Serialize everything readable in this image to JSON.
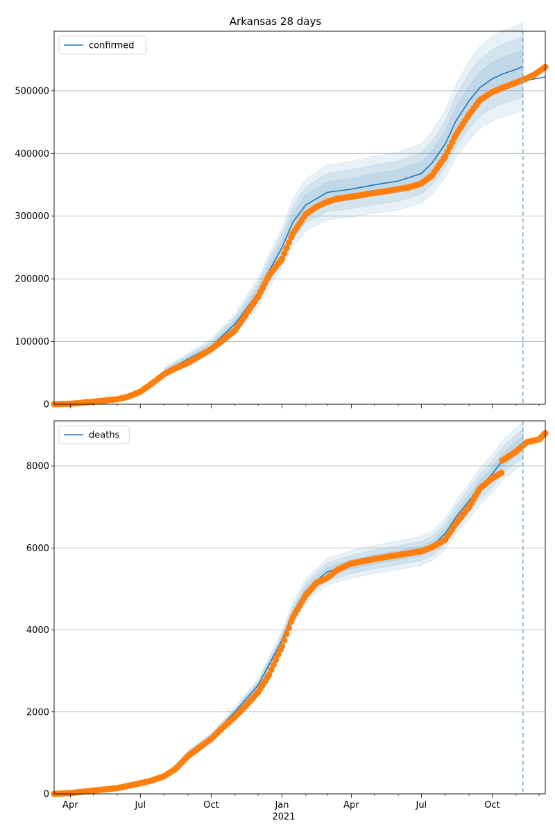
{
  "title": "Arkansas 28 days",
  "colors": {
    "model": "#1f77b4",
    "observed": "#ff7f0e",
    "band": "#1f77b4",
    "grid": "#b0b0b0",
    "forecast_line": "#7fb1d3"
  },
  "x_axis": {
    "start": "2020-03-11",
    "end": "2021-12-09",
    "forecast_date": "2021-11-10",
    "ticks": [
      {
        "date": "2020-04-01",
        "label": "Apr"
      },
      {
        "date": "2020-07-01",
        "label": "Jul"
      },
      {
        "date": "2020-10-01",
        "label": "Oct"
      },
      {
        "date": "2021-01-01",
        "label": "Jan"
      },
      {
        "date": "2021-04-01",
        "label": "Apr"
      },
      {
        "date": "2021-07-01",
        "label": "Jul"
      },
      {
        "date": "2021-10-01",
        "label": "Oct"
      }
    ],
    "minor_ticks": [
      "2020-05-01",
      "2020-06-01",
      "2020-08-01",
      "2020-09-01",
      "2020-11-01",
      "2020-12-01",
      "2021-02-01",
      "2021-03-01",
      "2021-05-01",
      "2021-06-01",
      "2021-08-01",
      "2021-09-01",
      "2021-11-01",
      "2021-12-01"
    ],
    "year_label": "2021"
  },
  "chart_data": [
    {
      "type": "line",
      "legend": "confirmed",
      "legend_position": "top-left",
      "grid": true,
      "ylim": [
        0,
        595000
      ],
      "yticks": [
        0,
        100000,
        200000,
        300000,
        400000,
        500000
      ],
      "model": [
        [
          "2020-08-01",
          52000
        ],
        [
          "2020-09-01",
          72000
        ],
        [
          "2020-10-01",
          92000
        ],
        [
          "2020-11-01",
          128000
        ],
        [
          "2020-12-01",
          178000
        ],
        [
          "2020-12-15",
          212000
        ],
        [
          "2021-01-01",
          250000
        ],
        [
          "2021-01-15",
          290000
        ],
        [
          "2021-02-01",
          318000
        ],
        [
          "2021-02-15",
          328000
        ],
        [
          "2021-03-01",
          338000
        ],
        [
          "2021-04-01",
          343000
        ],
        [
          "2021-05-01",
          350000
        ],
        [
          "2021-06-01",
          356000
        ],
        [
          "2021-07-01",
          368000
        ],
        [
          "2021-07-15",
          385000
        ],
        [
          "2021-08-01",
          415000
        ],
        [
          "2021-08-15",
          452000
        ],
        [
          "2021-09-01",
          484000
        ],
        [
          "2021-09-15",
          505000
        ],
        [
          "2021-10-01",
          519000
        ],
        [
          "2021-10-15",
          527000
        ],
        [
          "2021-11-01",
          534000
        ],
        [
          "2021-11-10",
          539000
        ]
      ],
      "model_forecast": [
        [
          "2021-11-10",
          515000
        ],
        [
          "2021-11-25",
          519000
        ],
        [
          "2021-12-09",
          522000
        ]
      ],
      "band_halfwidths": [
        0.05,
        0.09,
        0.13
      ],
      "observed": [
        [
          "2020-03-11",
          0
        ],
        [
          "2020-04-01",
          700
        ],
        [
          "2020-05-01",
          4000
        ],
        [
          "2020-06-01",
          8000
        ],
        [
          "2020-06-15",
          12000
        ],
        [
          "2020-07-01",
          20000
        ],
        [
          "2020-07-15",
          32000
        ],
        [
          "2020-08-01",
          48000
        ],
        [
          "2020-08-15",
          57000
        ],
        [
          "2020-09-01",
          66000
        ],
        [
          "2020-09-15",
          76000
        ],
        [
          "2020-10-01",
          88000
        ],
        [
          "2020-10-15",
          101000
        ],
        [
          "2020-11-01",
          118000
        ],
        [
          "2020-11-15",
          143000
        ],
        [
          "2020-12-01",
          172000
        ],
        [
          "2020-12-15",
          205000
        ],
        [
          "2021-01-01",
          232000
        ],
        [
          "2021-01-15",
          272000
        ],
        [
          "2021-02-01",
          303000
        ],
        [
          "2021-02-15",
          315000
        ],
        [
          "2021-03-01",
          323000
        ],
        [
          "2021-03-15",
          328000
        ],
        [
          "2021-04-01",
          331000
        ],
        [
          "2021-05-01",
          337000
        ],
        [
          "2021-06-01",
          343000
        ],
        [
          "2021-06-15",
          346000
        ],
        [
          "2021-07-01",
          352000
        ],
        [
          "2021-07-15",
          365000
        ],
        [
          "2021-08-01",
          395000
        ],
        [
          "2021-08-15",
          430000
        ],
        [
          "2021-09-01",
          462000
        ],
        [
          "2021-09-15",
          485000
        ],
        [
          "2021-10-01",
          498000
        ],
        [
          "2021-10-15",
          505000
        ],
        [
          "2021-11-01",
          513000
        ],
        [
          "2021-11-15",
          520000
        ],
        [
          "2021-11-25",
          526000
        ],
        [
          "2021-12-09",
          538000
        ]
      ]
    },
    {
      "type": "line",
      "legend": "deaths",
      "legend_position": "top-left",
      "grid": true,
      "ylim": [
        0,
        9100
      ],
      "yticks": [
        0,
        2000,
        4000,
        6000,
        8000
      ],
      "model": [
        [
          "2020-08-15",
          650
        ],
        [
          "2020-09-01",
          1000
        ],
        [
          "2020-10-01",
          1400
        ],
        [
          "2020-11-01",
          2000
        ],
        [
          "2020-12-01",
          2650
        ],
        [
          "2021-01-01",
          3750
        ],
        [
          "2021-01-15",
          4400
        ],
        [
          "2021-02-01",
          4950
        ],
        [
          "2021-02-15",
          5200
        ],
        [
          "2021-03-01",
          5420
        ],
        [
          "2021-04-01",
          5600
        ],
        [
          "2021-05-01",
          5720
        ],
        [
          "2021-06-01",
          5820
        ],
        [
          "2021-07-01",
          5930
        ],
        [
          "2021-07-15",
          6050
        ],
        [
          "2021-08-01",
          6350
        ],
        [
          "2021-08-15",
          6750
        ],
        [
          "2021-09-01",
          7150
        ],
        [
          "2021-09-15",
          7500
        ],
        [
          "2021-10-01",
          7800
        ],
        [
          "2021-10-15",
          8150
        ],
        [
          "2021-11-01",
          8420
        ],
        [
          "2021-11-10",
          8550
        ]
      ],
      "model_forecast": [],
      "band_halfwidths": [
        0.02,
        0.04,
        0.06
      ],
      "observed": [
        [
          "2020-03-11",
          0
        ],
        [
          "2020-04-01",
          20
        ],
        [
          "2020-05-01",
          80
        ],
        [
          "2020-06-01",
          140
        ],
        [
          "2020-07-01",
          260
        ],
        [
          "2020-07-15",
          320
        ],
        [
          "2020-08-01",
          430
        ],
        [
          "2020-08-15",
          600
        ],
        [
          "2020-09-01",
          920
        ],
        [
          "2020-09-15",
          1120
        ],
        [
          "2020-10-01",
          1340
        ],
        [
          "2020-10-15",
          1600
        ],
        [
          "2020-11-01",
          1880
        ],
        [
          "2020-11-15",
          2150
        ],
        [
          "2020-12-01",
          2480
        ],
        [
          "2020-12-15",
          2900
        ],
        [
          "2021-01-01",
          3600
        ],
        [
          "2021-01-15",
          4300
        ],
        [
          "2021-02-01",
          4850
        ],
        [
          "2021-02-15",
          5150
        ],
        [
          "2021-03-01",
          5270
        ],
        [
          "2021-03-15",
          5480
        ],
        [
          "2021-04-01",
          5620
        ],
        [
          "2021-05-01",
          5730
        ],
        [
          "2021-06-01",
          5830
        ],
        [
          "2021-07-01",
          5920
        ],
        [
          "2021-07-15",
          6020
        ],
        [
          "2021-08-01",
          6200
        ],
        [
          "2021-08-15",
          6600
        ],
        [
          "2021-09-01",
          7000
        ],
        [
          "2021-09-15",
          7450
        ],
        [
          "2021-10-01",
          7700
        ],
        [
          "2021-10-13",
          7830
        ],
        [
          "2021-10-14",
          8130
        ],
        [
          "2021-11-01",
          8350
        ],
        [
          "2021-11-15",
          8580
        ],
        [
          "2021-12-01",
          8650
        ],
        [
          "2021-12-09",
          8800
        ]
      ]
    }
  ]
}
